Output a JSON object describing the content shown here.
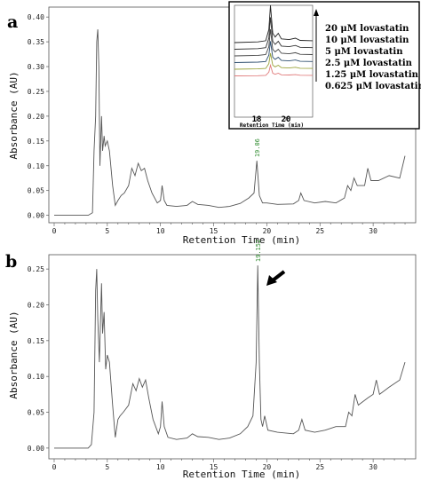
{
  "chart_data": [
    {
      "panel": "a",
      "type": "line",
      "xlabel": "Retention Time (min)",
      "ylabel": "Absorbance (AU)",
      "xlim": [
        -0.5,
        34
      ],
      "ylim": [
        -0.015,
        0.42
      ],
      "xticks": [
        "0",
        "5",
        "10",
        "15",
        "20",
        "25",
        "30"
      ],
      "yticks": [
        "0.00",
        "0.05",
        "0.10",
        "0.15",
        "0.20",
        "0.25",
        "0.30",
        "0.35",
        "0.40"
      ],
      "peak_label": {
        "text": "19.06",
        "x": 19.06
      },
      "series": [
        {
          "points": [
            [
              0,
              0
            ],
            [
              3.2,
              0
            ],
            [
              3.6,
              0.005
            ],
            [
              3.75,
              0.13
            ],
            [
              3.9,
              0.2
            ],
            [
              4.0,
              0.35
            ],
            [
              4.1,
              0.375
            ],
            [
              4.2,
              0.3
            ],
            [
              4.3,
              0.1
            ],
            [
              4.45,
              0.2
            ],
            [
              4.55,
              0.13
            ],
            [
              4.7,
              0.16
            ],
            [
              4.8,
              0.14
            ],
            [
              5.0,
              0.15
            ],
            [
              5.2,
              0.13
            ],
            [
              5.5,
              0.06
            ],
            [
              5.75,
              0.02
            ],
            [
              6.0,
              0.03
            ],
            [
              6.3,
              0.04
            ],
            [
              6.6,
              0.045
            ],
            [
              7.0,
              0.06
            ],
            [
              7.3,
              0.095
            ],
            [
              7.6,
              0.08
            ],
            [
              7.9,
              0.105
            ],
            [
              8.2,
              0.09
            ],
            [
              8.5,
              0.095
            ],
            [
              8.8,
              0.07
            ],
            [
              9.2,
              0.045
            ],
            [
              9.7,
              0.025
            ],
            [
              10.0,
              0.03
            ],
            [
              10.15,
              0.06
            ],
            [
              10.35,
              0.03
            ],
            [
              10.6,
              0.02
            ],
            [
              11.5,
              0.018
            ],
            [
              12.5,
              0.02
            ],
            [
              13.0,
              0.028
            ],
            [
              13.5,
              0.022
            ],
            [
              14.5,
              0.02
            ],
            [
              15.5,
              0.016
            ],
            [
              16.5,
              0.018
            ],
            [
              17.5,
              0.024
            ],
            [
              18.3,
              0.035
            ],
            [
              18.8,
              0.045
            ],
            [
              19.06,
              0.11
            ],
            [
              19.3,
              0.04
            ],
            [
              19.6,
              0.025
            ],
            [
              20.0,
              0.025
            ],
            [
              21.0,
              0.022
            ],
            [
              22.5,
              0.023
            ],
            [
              23.0,
              0.03
            ],
            [
              23.2,
              0.045
            ],
            [
              23.5,
              0.03
            ],
            [
              24.5,
              0.025
            ],
            [
              25.5,
              0.028
            ],
            [
              26.5,
              0.025
            ],
            [
              27.3,
              0.035
            ],
            [
              27.6,
              0.06
            ],
            [
              27.9,
              0.05
            ],
            [
              28.2,
              0.075
            ],
            [
              28.5,
              0.06
            ],
            [
              29.2,
              0.06
            ],
            [
              29.5,
              0.095
            ],
            [
              29.8,
              0.07
            ],
            [
              30.5,
              0.07
            ],
            [
              31.5,
              0.08
            ],
            [
              32.5,
              0.075
            ],
            [
              33.0,
              0.12
            ]
          ]
        }
      ],
      "inset": {
        "xticks": [
          "18",
          "20"
        ],
        "xlabel": "Retention Time (min)",
        "legend_title_arrow": "up",
        "series": [
          {
            "name": "20 μM lovastatin",
            "color": "#222222"
          },
          {
            "name": "10 μM lovastatin",
            "color": "#333333"
          },
          {
            "name": "5 μM lovastatin",
            "color": "#444444"
          },
          {
            "name": "2.5 μM lovastatin",
            "color": "#2f4f6f"
          },
          {
            "name": "1.25 μM lovastatin",
            "color": "#9aa33a"
          },
          {
            "name": "0.625 μM lovastatin",
            "color": "#e07a7a"
          }
        ]
      }
    },
    {
      "panel": "b",
      "type": "line",
      "xlabel": "Retention Time (min)",
      "ylabel": "Absorbance (AU)",
      "xlim": [
        -0.5,
        34
      ],
      "ylim": [
        -0.015,
        0.27
      ],
      "xticks": [
        "0",
        "5",
        "10",
        "15",
        "20",
        "25",
        "30"
      ],
      "yticks": [
        "0.00",
        "0.05",
        "0.10",
        "0.15",
        "0.20",
        "0.25"
      ],
      "peak_label": {
        "text": "19.152",
        "x": 19.15
      },
      "series": [
        {
          "points": [
            [
              0,
              0
            ],
            [
              3.2,
              0
            ],
            [
              3.5,
              0.005
            ],
            [
              3.75,
              0.05
            ],
            [
              3.9,
              0.22
            ],
            [
              4.0,
              0.25
            ],
            [
              4.1,
              0.18
            ],
            [
              4.25,
              0.12
            ],
            [
              4.45,
              0.23
            ],
            [
              4.55,
              0.16
            ],
            [
              4.7,
              0.19
            ],
            [
              4.85,
              0.11
            ],
            [
              5.0,
              0.13
            ],
            [
              5.2,
              0.12
            ],
            [
              5.5,
              0.06
            ],
            [
              5.75,
              0.015
            ],
            [
              6.0,
              0.04
            ],
            [
              6.2,
              0.045
            ],
            [
              6.5,
              0.05
            ],
            [
              7.0,
              0.06
            ],
            [
              7.4,
              0.09
            ],
            [
              7.7,
              0.08
            ],
            [
              8.0,
              0.097
            ],
            [
              8.3,
              0.085
            ],
            [
              8.6,
              0.095
            ],
            [
              8.9,
              0.07
            ],
            [
              9.3,
              0.04
            ],
            [
              9.8,
              0.02
            ],
            [
              10.0,
              0.03
            ],
            [
              10.15,
              0.065
            ],
            [
              10.35,
              0.03
            ],
            [
              10.7,
              0.015
            ],
            [
              11.5,
              0.012
            ],
            [
              12.5,
              0.014
            ],
            [
              13.0,
              0.02
            ],
            [
              13.5,
              0.016
            ],
            [
              14.5,
              0.015
            ],
            [
              15.5,
              0.012
            ],
            [
              16.5,
              0.014
            ],
            [
              17.5,
              0.02
            ],
            [
              18.2,
              0.03
            ],
            [
              18.7,
              0.045
            ],
            [
              19.0,
              0.12
            ],
            [
              19.15,
              0.255
            ],
            [
              19.3,
              0.12
            ],
            [
              19.45,
              0.04
            ],
            [
              19.6,
              0.03
            ],
            [
              19.8,
              0.045
            ],
            [
              20.1,
              0.025
            ],
            [
              21.0,
              0.022
            ],
            [
              22.5,
              0.02
            ],
            [
              23.0,
              0.025
            ],
            [
              23.3,
              0.04
            ],
            [
              23.6,
              0.025
            ],
            [
              24.5,
              0.022
            ],
            [
              25.5,
              0.025
            ],
            [
              26.5,
              0.03
            ],
            [
              27.4,
              0.03
            ],
            [
              27.7,
              0.05
            ],
            [
              28.0,
              0.045
            ],
            [
              28.3,
              0.075
            ],
            [
              28.6,
              0.06
            ],
            [
              29.5,
              0.07
            ],
            [
              30.0,
              0.075
            ],
            [
              30.3,
              0.095
            ],
            [
              30.6,
              0.075
            ],
            [
              31.5,
              0.085
            ],
            [
              32.5,
              0.095
            ],
            [
              33.0,
              0.12
            ]
          ]
        }
      ]
    }
  ]
}
